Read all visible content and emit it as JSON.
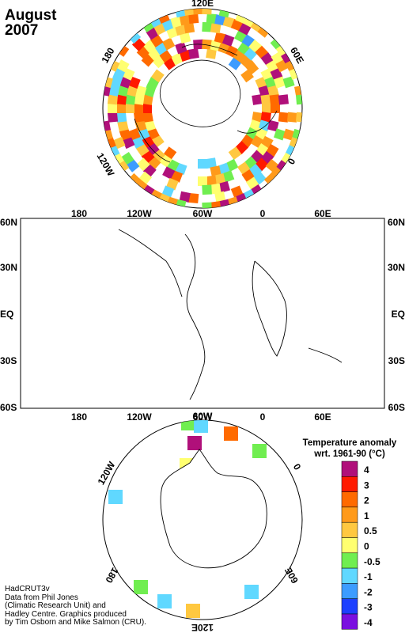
{
  "title": {
    "month": "August",
    "year": "2007"
  },
  "north_map": {
    "lon_labels": {
      "top": "120E",
      "right": "60E",
      "bottom_right": "0",
      "bottom_left": "120W",
      "left": "180"
    }
  },
  "world_map": {
    "top_lon_labels": [
      "180",
      "120W",
      "60W",
      "0",
      "60E"
    ],
    "bottom_lon_labels": [
      "180",
      "120W",
      "60W",
      "0",
      "60E"
    ],
    "lat_labels": [
      "60N",
      "30N",
      "EQ",
      "30S",
      "60S"
    ]
  },
  "south_map": {
    "lon_labels": {
      "top": "60W",
      "top_right": "0",
      "top_left": "120W",
      "bottom_right": "60E",
      "bottom_left": "180",
      "bottom": "120E"
    }
  },
  "legend": {
    "title_line1": "Temperature anomaly",
    "title_line2": "wrt. 1961-90  (°C)",
    "items": [
      {
        "label": "4",
        "color": "#b0107a"
      },
      {
        "label": "3",
        "color": "#ff1a00"
      },
      {
        "label": "2",
        "color": "#ff6a00"
      },
      {
        "label": "1",
        "color": "#ff9a1a"
      },
      {
        "label": "0.5",
        "color": "#ffc840"
      },
      {
        "label": "0",
        "color": "#ffff70"
      },
      {
        "label": "-0.5",
        "color": "#70ee50"
      },
      {
        "label": "-1",
        "color": "#60d8ff"
      },
      {
        "label": "-2",
        "color": "#3c9cff"
      },
      {
        "label": "-3",
        "color": "#1c40ff"
      },
      {
        "label": "-4",
        "color": "#7a10e0"
      }
    ]
  },
  "credits": [
    "HadCRUT3v",
    "Data from Phil Jones",
    "(Climatic Research Unit) and",
    "Hadley Centre.  Graphics produced",
    "by Tim Osborn and Mike Salmon (CRU)."
  ]
}
